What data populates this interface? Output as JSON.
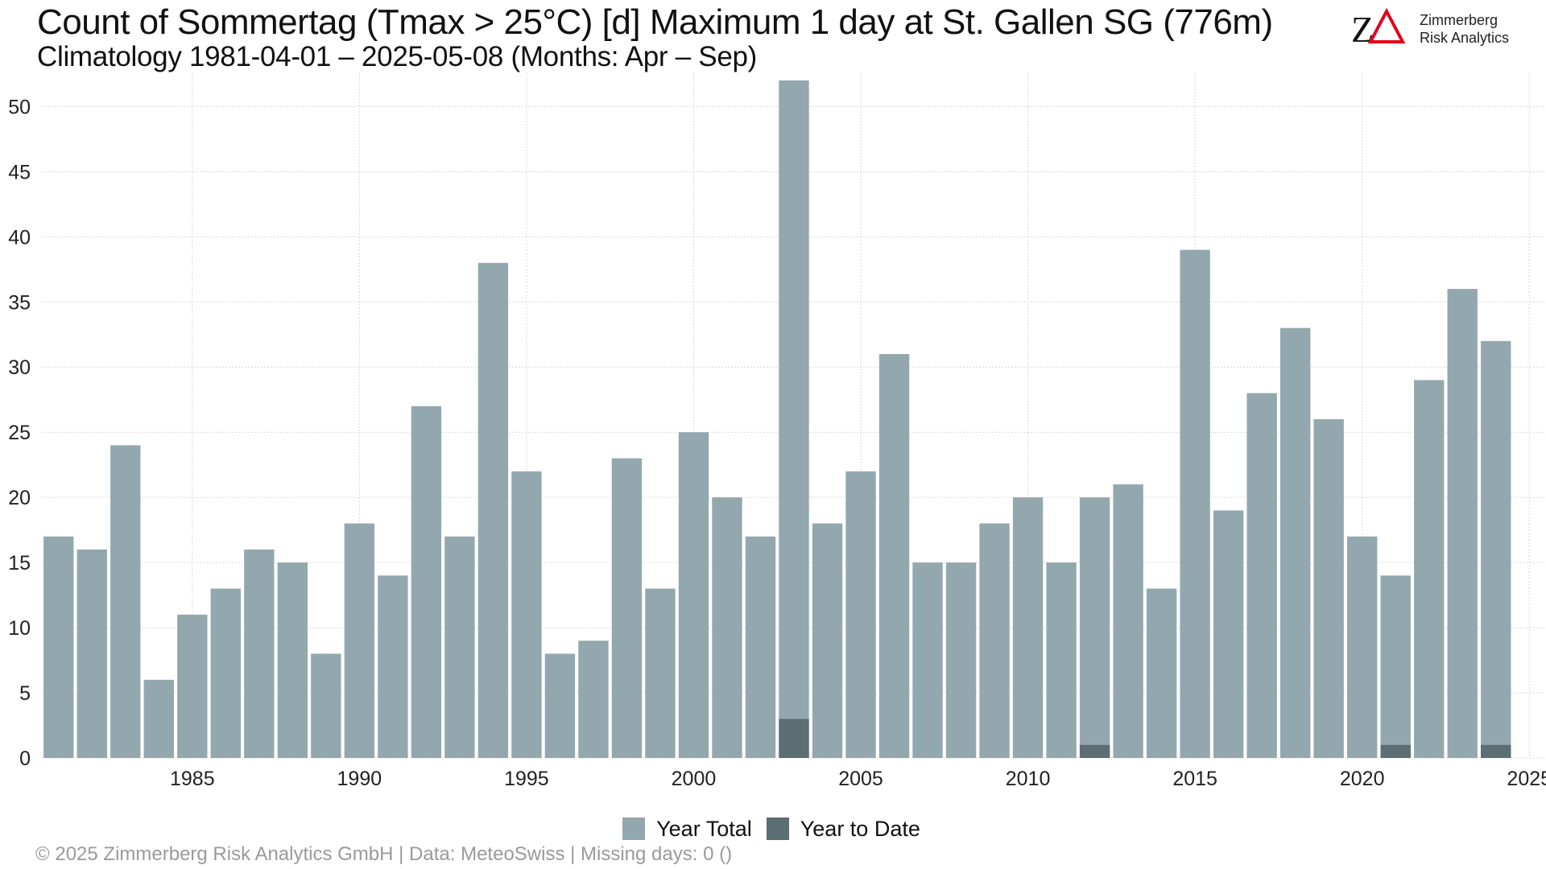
{
  "header": {
    "title": "Count of Sommertag (Tmax > 25°C) [d] Maximum 1 day at St. Gallen  SG (776m)",
    "subtitle": "Climatology 1981-04-01 – 2025-05-08 (Months: Apr – Sep)"
  },
  "logo": {
    "mark": "ZΔ",
    "line1": "Zimmerberg",
    "line2": "Risk Analytics",
    "mark_color": "#111111",
    "delta_color": "#e3001b"
  },
  "footer": {
    "text": "©  2025 Zimmerberg Risk Analytics GmbH | Data: MeteoSwiss | Missing days: 0 ()"
  },
  "colors": {
    "year_total": "#93a7ae",
    "year_to_date": "#5a6e74",
    "grid": "#d9d9d9"
  },
  "chart_data": {
    "type": "bar",
    "title": "Count of Sommertag (Tmax > 25°C) [d] Maximum 1 day at St. Gallen  SG (776m)",
    "subtitle": "Climatology 1981-04-01 – 2025-05-08 (Months: Apr – Sep)",
    "xlabel": "",
    "ylabel": "",
    "xlim": [
      1980.5,
      2025.5
    ],
    "ylim": [
      0,
      52
    ],
    "x_ticks": [
      1985,
      1990,
      1995,
      2000,
      2005,
      2010,
      2015,
      2020,
      2025
    ],
    "y_ticks": [
      0,
      5,
      10,
      15,
      20,
      25,
      30,
      35,
      40,
      45,
      50
    ],
    "grid": true,
    "legend_position": "bottom",
    "categories": [
      1981,
      1982,
      1983,
      1984,
      1985,
      1986,
      1987,
      1988,
      1989,
      1990,
      1991,
      1992,
      1993,
      1994,
      1995,
      1996,
      1997,
      1998,
      1999,
      2000,
      2001,
      2002,
      2003,
      2004,
      2005,
      2006,
      2007,
      2008,
      2009,
      2010,
      2011,
      2012,
      2013,
      2014,
      2015,
      2016,
      2017,
      2018,
      2019,
      2020,
      2021,
      2022,
      2023,
      2024
    ],
    "series": [
      {
        "name": "Year Total",
        "values": [
          17,
          16,
          24,
          6,
          11,
          13,
          16,
          15,
          8,
          18,
          14,
          27,
          17,
          38,
          22,
          8,
          9,
          23,
          13,
          25,
          20,
          17,
          52,
          18,
          22,
          31,
          15,
          15,
          18,
          20,
          15,
          20,
          21,
          13,
          39,
          19,
          28,
          33,
          26,
          17,
          14,
          29,
          36,
          32
        ]
      },
      {
        "name": "Year to Date",
        "values": [
          0,
          0,
          0,
          0,
          0,
          0,
          0,
          0,
          0,
          0,
          0,
          0,
          0,
          0,
          0,
          0,
          0,
          0,
          0,
          0,
          0,
          0,
          3,
          0,
          0,
          0,
          0,
          0,
          0,
          0,
          0,
          1,
          0,
          0,
          0,
          0,
          0,
          0,
          0,
          0,
          1,
          0,
          0,
          1
        ]
      }
    ]
  }
}
